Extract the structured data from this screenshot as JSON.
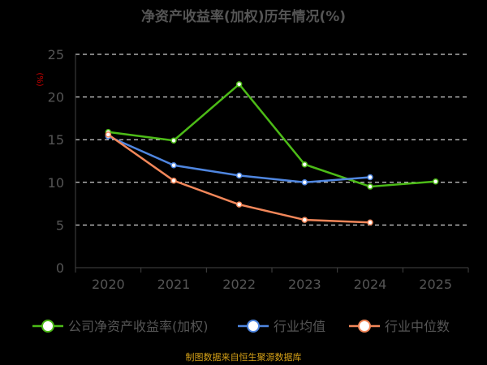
{
  "colors": {
    "background": "#000000",
    "title": "#555555",
    "axis_text": "#555555",
    "unit": "#cc0000",
    "grid": "#ffffff",
    "axis_line": "#444444",
    "source": "#d4a017"
  },
  "chart_data": {
    "type": "line",
    "title": "净资产收益率(加权)历年情况(%)",
    "ylabel": "(%)",
    "xlabel": "",
    "categories": [
      "2020",
      "2021",
      "2022",
      "2023",
      "2024",
      "2025"
    ],
    "y_ticks": [
      "0",
      "5",
      "10",
      "15",
      "20",
      "25"
    ],
    "ylim": [
      0,
      25
    ],
    "grid": true,
    "grid_style": "dashed",
    "legend_position": "bottom",
    "series": [
      {
        "name": "公司净资产收益率(加权)",
        "color": "#4cbb17",
        "values": [
          15.9,
          14.9,
          21.5,
          12.1,
          9.5,
          10.1
        ]
      },
      {
        "name": "行业均值",
        "color": "#4f86e0",
        "values": [
          15.4,
          12.0,
          10.8,
          10.0,
          10.6,
          null
        ]
      },
      {
        "name": "行业中位数",
        "color": "#f2875a",
        "values": [
          15.6,
          10.2,
          7.4,
          5.6,
          5.3,
          null
        ]
      }
    ]
  },
  "footer": {
    "source": "制图数据来自恒生聚源数据库"
  }
}
